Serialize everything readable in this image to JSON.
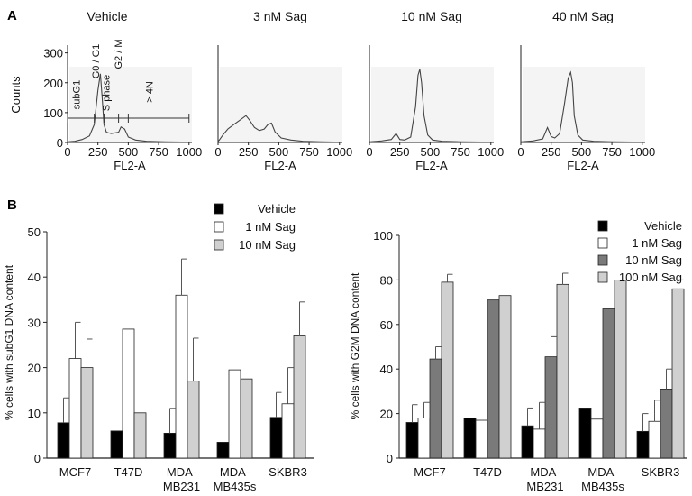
{
  "panel_labels": {
    "a": "A",
    "b": "B"
  },
  "colors": {
    "black": "#000000",
    "white": "#ffffff",
    "gray": "#7a7a7a",
    "light": "#d0d0d0",
    "line": "#555555"
  },
  "chart_data": [
    {
      "type": "line",
      "id": "hist-vehicle",
      "title": "Vehicle",
      "xlabel": "FL2-A",
      "ylabel": "Counts",
      "xlim": [
        0,
        1024
      ],
      "ylim": [
        0,
        320
      ],
      "xticks": [
        "0",
        "250",
        "500",
        "750",
        "1000"
      ],
      "yticks": [
        "0",
        "100",
        "200",
        "300"
      ],
      "gates": [
        "subG1",
        "G0 / G1",
        "S phase",
        "G2 / M",
        "> 4N"
      ],
      "x": [
        0,
        60,
        120,
        180,
        220,
        250,
        270,
        285,
        300,
        320,
        360,
        420,
        440,
        470,
        500,
        560,
        650,
        800,
        1000
      ],
      "y": [
        2,
        4,
        10,
        22,
        60,
        175,
        230,
        150,
        60,
        34,
        30,
        34,
        52,
        45,
        18,
        8,
        4,
        2,
        1
      ]
    },
    {
      "type": "line",
      "id": "hist-3nm",
      "title": "3 nM Sag",
      "xlabel": "FL2-A",
      "xlim": [
        0,
        1024
      ],
      "ylim": [
        0,
        320
      ],
      "xticks": [
        "0",
        "250",
        "500",
        "750",
        "1000"
      ],
      "x": [
        0,
        40,
        80,
        130,
        180,
        230,
        260,
        300,
        340,
        380,
        410,
        440,
        470,
        520,
        600,
        700,
        850,
        1000
      ],
      "y": [
        2,
        25,
        45,
        60,
        75,
        90,
        75,
        50,
        40,
        45,
        60,
        65,
        35,
        15,
        8,
        4,
        2,
        1
      ]
    },
    {
      "type": "line",
      "id": "hist-10nm",
      "title": "10 nM Sag",
      "xlabel": "FL2-A",
      "xlim": [
        0,
        1024
      ],
      "ylim": [
        0,
        320
      ],
      "xticks": [
        "0",
        "250",
        "500",
        "750",
        "1000"
      ],
      "x": [
        0,
        100,
        180,
        220,
        250,
        290,
        340,
        380,
        400,
        415,
        430,
        450,
        480,
        520,
        600,
        750,
        1000
      ],
      "y": [
        2,
        5,
        10,
        30,
        10,
        8,
        18,
        120,
        225,
        245,
        200,
        90,
        25,
        8,
        4,
        2,
        1
      ]
    },
    {
      "type": "line",
      "id": "hist-40nm",
      "title": "40 nM Sag",
      "xlabel": "FL2-A",
      "xlim": [
        0,
        1024
      ],
      "ylim": [
        0,
        320
      ],
      "xticks": [
        "0",
        "250",
        "500",
        "750",
        "1000"
      ],
      "x": [
        0,
        100,
        180,
        220,
        250,
        280,
        320,
        360,
        390,
        410,
        425,
        440,
        470,
        510,
        600,
        750,
        1000
      ],
      "y": [
        2,
        5,
        12,
        50,
        20,
        15,
        30,
        130,
        215,
        235,
        200,
        90,
        25,
        8,
        4,
        2,
        1
      ]
    },
    {
      "type": "bar",
      "id": "subg1",
      "ylabel": "% cells with subG1 DNA content",
      "ylim": [
        0,
        50
      ],
      "yticks": [
        "0",
        "10",
        "20",
        "30",
        "40",
        "50"
      ],
      "categories": [
        "MCF7",
        "T47D",
        "MDA-|MB231",
        "MDA-|MB435s",
        "SKBR3"
      ],
      "series": [
        {
          "name": "Vehicle",
          "color": "#000000",
          "values": [
            7.8,
            6,
            5.5,
            3.5,
            9
          ],
          "errors": [
            5.5,
            0,
            5.5,
            0,
            5.5
          ]
        },
        {
          "name": "1 nM Sag",
          "color": "#ffffff",
          "values": [
            22,
            28.5,
            36,
            19.5,
            12
          ],
          "errors": [
            8,
            0,
            8,
            0,
            8
          ]
        },
        {
          "name": "10  nM Sag",
          "color": "#d0d0d0",
          "values": [
            20,
            10,
            17,
            17.5,
            27
          ],
          "errors": [
            6.3,
            0,
            9.5,
            0,
            7.5
          ]
        }
      ]
    },
    {
      "type": "bar",
      "id": "g2m",
      "ylabel": "% cells with G2M DNA content",
      "ylim": [
        0,
        100
      ],
      "yticks": [
        "0",
        "20",
        "40",
        "60",
        "80",
        "100"
      ],
      "categories": [
        "MCF7",
        "T47D",
        "MDA-|MB231",
        "MDA-|MB435s",
        "SKBR3"
      ],
      "series": [
        {
          "name": "Vehicle",
          "color": "#000000",
          "values": [
            16,
            18,
            14.5,
            22.5,
            12
          ],
          "errors": [
            8,
            0,
            8,
            0,
            8
          ]
        },
        {
          "name": "1 nM Sag",
          "color": "#ffffff",
          "values": [
            18,
            17,
            13,
            17.5,
            16.5
          ],
          "errors": [
            7,
            0,
            12,
            0,
            9.5
          ]
        },
        {
          "name": "10 nM Sag",
          "color": "#7a7a7a",
          "values": [
            44.5,
            71,
            45.5,
            67,
            31
          ],
          "errors": [
            5.5,
            0,
            9,
            0,
            9
          ]
        },
        {
          "name": "100 nM Sag",
          "color": "#d0d0d0",
          "values": [
            79,
            73,
            78,
            80,
            76
          ],
          "errors": [
            3.5,
            0,
            5,
            0,
            4
          ]
        }
      ]
    }
  ]
}
